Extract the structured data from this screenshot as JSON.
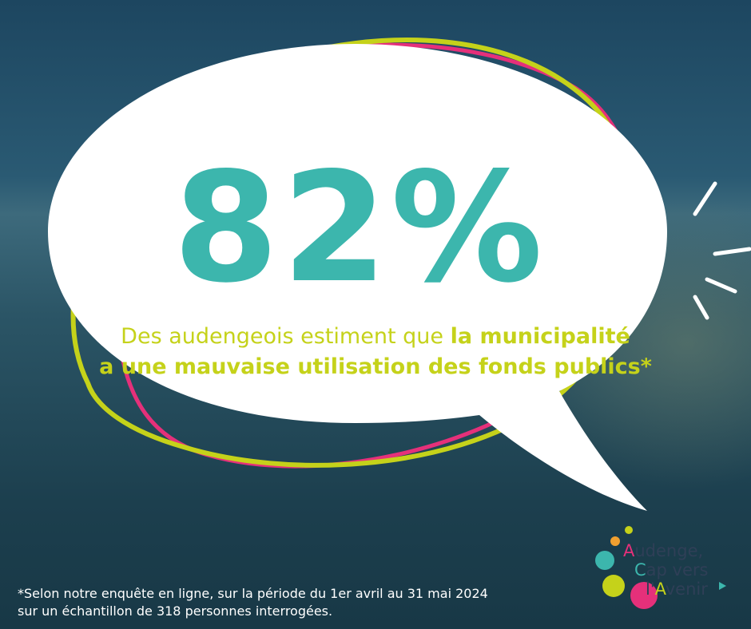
{
  "headline": "82%",
  "statement": {
    "line1_plain": "Des audengeois estiment que ",
    "line1_bold": "la municipalité",
    "line2": "a une mauvaise utilisation des fonds publics*"
  },
  "footnote": {
    "line1": "*Selon notre enquête en ligne, sur la période du 1er avril au 31 mai 2024",
    "line2": "sur un échantillon de 318 personnes interrogées."
  },
  "logo": {
    "lines": [
      [
        {
          "text": "A",
          "color": "#e5307a"
        },
        {
          "text": "udenge,",
          "color": "#2f3f57"
        }
      ],
      [
        {
          "text": "C",
          "color": "#3cb6ad"
        },
        {
          "text": "ap vers",
          "color": "#2f3f57"
        }
      ],
      [
        {
          "text": "l'",
          "color": "#2f3f57"
        },
        {
          "text": "A",
          "color": "#c5d21a"
        },
        {
          "text": "venir",
          "color": "#2f3f57"
        }
      ]
    ]
  }
}
